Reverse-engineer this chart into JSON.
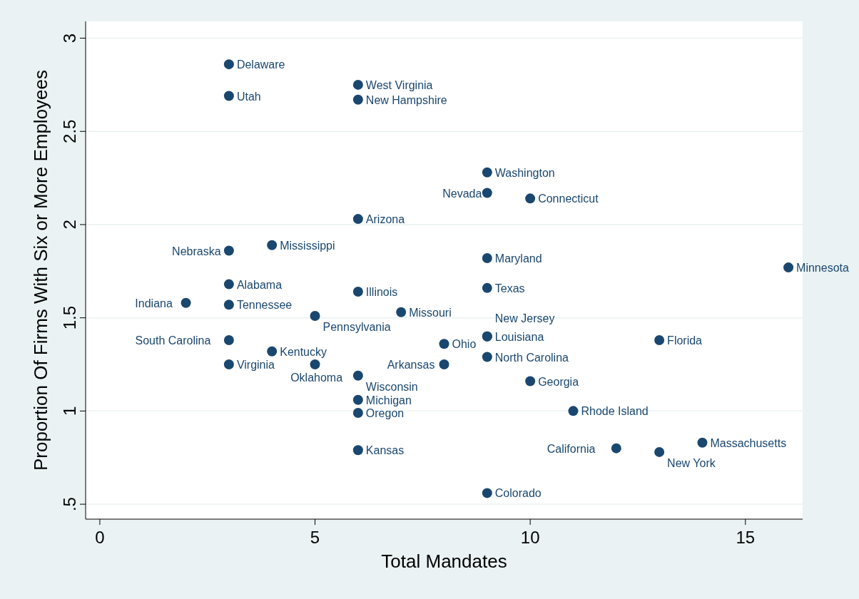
{
  "chart_data": {
    "type": "scatter",
    "xlabel": "Total Mandates",
    "ylabel": "Proportion Of Firms With Six or More Employees",
    "xlim": [
      -0.33,
      16.33
    ],
    "ylim": [
      0.42,
      3.09
    ],
    "xticks": [
      0,
      5,
      10,
      15
    ],
    "yticks": [
      {
        "value": 0.5,
        "label": ".5"
      },
      1,
      1.5,
      2,
      2.5,
      3
    ],
    "grid": "y",
    "marker": "circle",
    "x": [
      3,
      3,
      6,
      6,
      9,
      9,
      10,
      6,
      4,
      3,
      9,
      16,
      3,
      6,
      9,
      2,
      3,
      5,
      7,
      9,
      9,
      8,
      3,
      13,
      4,
      9,
      3,
      5,
      8,
      6,
      10,
      6,
      6,
      11,
      14,
      12,
      13,
      6,
      9
    ],
    "series": [
      {
        "color": "#1a476f",
        "values": [
          2.86,
          2.69,
          2.75,
          2.67,
          2.28,
          2.17,
          2.14,
          2.03,
          1.89,
          1.86,
          1.82,
          1.77,
          1.68,
          1.64,
          1.66,
          1.58,
          1.57,
          1.51,
          1.53,
          1.4,
          1.4,
          1.36,
          1.38,
          1.38,
          1.32,
          1.29,
          1.25,
          1.25,
          1.25,
          1.19,
          1.16,
          1.06,
          0.99,
          1.0,
          0.83,
          0.8,
          0.78,
          0.79,
          0.56
        ]
      }
    ],
    "annotations": [
      {
        "text": "Delaware",
        "x": 3,
        "y": 2.86
      },
      {
        "text": "Utah",
        "x": 3,
        "y": 2.69
      },
      {
        "text": "West Virginia",
        "x": 6,
        "y": 2.75
      },
      {
        "text": "New Hampshire",
        "x": 6,
        "y": 2.67
      },
      {
        "text": "Washington",
        "x": 9,
        "y": 2.28
      },
      {
        "text": "Nevada",
        "x": 9,
        "y": 2.17
      },
      {
        "text": "Connecticut",
        "x": 10,
        "y": 2.14
      },
      {
        "text": "Arizona",
        "x": 6,
        "y": 2.03
      },
      {
        "text": "Mississippi",
        "x": 4,
        "y": 1.89
      },
      {
        "text": "Nebraska",
        "x": 3,
        "y": 1.86
      },
      {
        "text": "Maryland",
        "x": 9,
        "y": 1.82
      },
      {
        "text": "Minnesota",
        "x": 16,
        "y": 1.77
      },
      {
        "text": "Alabama",
        "x": 3,
        "y": 1.68
      },
      {
        "text": "Illinois",
        "x": 6,
        "y": 1.64
      },
      {
        "text": "Texas",
        "x": 9,
        "y": 1.66
      },
      {
        "text": "Indiana",
        "x": 2,
        "y": 1.58
      },
      {
        "text": "Tennessee",
        "x": 3,
        "y": 1.57
      },
      {
        "text": "Pennsylvania",
        "x": 5,
        "y": 1.51
      },
      {
        "text": "Missouri",
        "x": 7,
        "y": 1.53
      },
      {
        "text": "Louisiana",
        "x": 9,
        "y": 1.4
      },
      {
        "text": "New Jersey",
        "x": 9,
        "y": 1.4
      },
      {
        "text": "Ohio",
        "x": 8,
        "y": 1.36
      },
      {
        "text": "South Carolina",
        "x": 3,
        "y": 1.38
      },
      {
        "text": "Florida",
        "x": 13,
        "y": 1.38
      },
      {
        "text": "Kentucky",
        "x": 4,
        "y": 1.32
      },
      {
        "text": "North Carolina",
        "x": 9,
        "y": 1.29
      },
      {
        "text": "Virginia",
        "x": 3,
        "y": 1.25
      },
      {
        "text": "Oklahoma",
        "x": 5,
        "y": 1.25
      },
      {
        "text": "Arkansas",
        "x": 8,
        "y": 1.25
      },
      {
        "text": "Wisconsin",
        "x": 6,
        "y": 1.19
      },
      {
        "text": "Georgia",
        "x": 10,
        "y": 1.16
      },
      {
        "text": "Michigan",
        "x": 6,
        "y": 1.06
      },
      {
        "text": "Oregon",
        "x": 6,
        "y": 0.99
      },
      {
        "text": "Rhode Island",
        "x": 11,
        "y": 1.0
      },
      {
        "text": "Massachusetts",
        "x": 14,
        "y": 0.83
      },
      {
        "text": "California",
        "x": 12,
        "y": 0.8
      },
      {
        "text": "New York",
        "x": 13,
        "y": 0.78
      },
      {
        "text": "Kansas",
        "x": 6,
        "y": 0.79
      },
      {
        "text": "Colorado",
        "x": 9,
        "y": 0.56
      }
    ]
  }
}
